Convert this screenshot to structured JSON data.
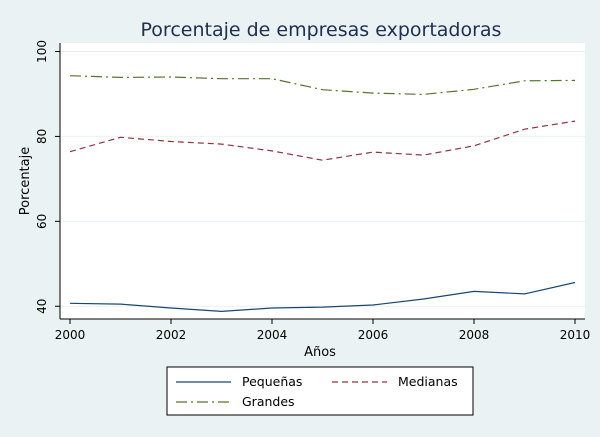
{
  "chart_data": {
    "type": "line",
    "title": "Porcentaje de empresas exportadoras",
    "xlabel": "Años",
    "ylabel": "Porcentaje",
    "xlim": [
      2000,
      2010
    ],
    "ylim": [
      37,
      102
    ],
    "x_ticks": [
      2000,
      2002,
      2004,
      2006,
      2008,
      2010
    ],
    "y_ticks": [
      40,
      60,
      80,
      100
    ],
    "grid": true,
    "legend_position": "bottom",
    "x": [
      2000,
      2001,
      2002,
      2003,
      2004,
      2005,
      2006,
      2007,
      2008,
      2009,
      2010
    ],
    "series": [
      {
        "name": "Pequeñas",
        "style": "solid",
        "color": "#1a476f",
        "values": [
          40.7,
          40.5,
          39.6,
          38.8,
          39.6,
          39.8,
          40.3,
          41.7,
          43.5,
          42.9,
          45.6
        ]
      },
      {
        "name": "Medianas",
        "style": "dash",
        "color": "#90353b",
        "values": [
          76.4,
          79.8,
          78.8,
          78.2,
          76.6,
          74.4,
          76.3,
          75.6,
          77.8,
          81.7,
          83.6
        ]
      },
      {
        "name": "Grandes",
        "style": "dashdot",
        "color": "#55752f",
        "values": [
          94.3,
          93.9,
          94.0,
          93.6,
          93.6,
          91.0,
          90.2,
          89.9,
          91.1,
          93.1,
          93.2
        ]
      }
    ],
    "colors": {
      "background": "#eaf2f3",
      "plot_background": "#ffffff",
      "title": "#1e2f4f",
      "grid": "#eaf2f3"
    }
  }
}
